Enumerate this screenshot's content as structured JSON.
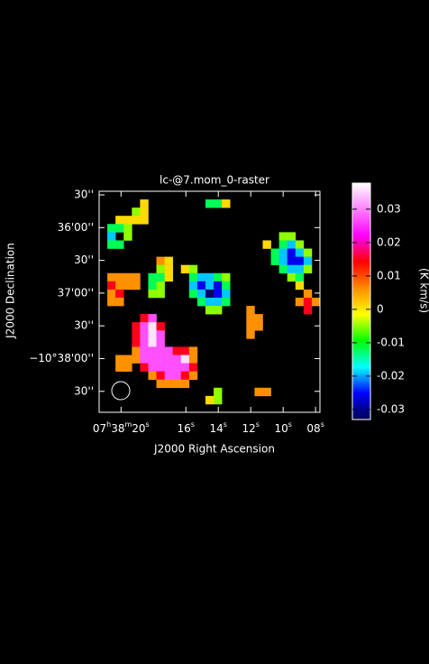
{
  "chart_data": {
    "type": "raster",
    "title": "lc-@7.mom_0-raster",
    "x_label": "J2000 Right Ascension",
    "y_label": "J2000 Declination",
    "colorbar_label": "(K km/s)",
    "xlim": [
      21.35,
      7.73
    ],
    "xticks": [
      {
        "value": 20,
        "label": "07h38m20s"
      },
      {
        "value": 16,
        "label": "16s"
      },
      {
        "value": 14,
        "label": "14s"
      },
      {
        "value": 12,
        "label": "12s"
      },
      {
        "value": 10,
        "label": "10s"
      },
      {
        "value": 8,
        "label": "08s"
      }
    ],
    "ylim": [
      2329.2,
      2126.7
    ],
    "yticks": [
      {
        "value": 2130,
        "label": "30''"
      },
      {
        "value": 2160,
        "label": "36'00''"
      },
      {
        "value": 2190,
        "label": "30''"
      },
      {
        "value": 2220,
        "label": "37'00''"
      },
      {
        "value": 2250,
        "label": "30''"
      },
      {
        "value": 2280,
        "label": "−10°38'00''"
      },
      {
        "value": 2310,
        "label": "30''"
      }
    ],
    "zlim": [
      -0.033,
      0.0378
    ],
    "zticks": [
      0.03,
      0.02,
      0.01,
      0,
      -0.01,
      -0.02,
      -0.03
    ],
    "colormap": [
      "#000050",
      "#0000ff",
      "#00ffff",
      "#00ff00",
      "#ffff00",
      "#ff8c00",
      "#ff0000",
      "#ff00ff",
      "#ff80ff",
      "#ffffff"
    ],
    "z": [
      [
        null,
        null,
        null,
        null,
        null,
        null,
        null,
        null,
        null,
        null,
        null,
        null,
        null,
        null,
        null,
        null,
        null,
        null,
        null,
        null,
        null,
        null,
        null,
        null,
        null,
        null,
        null
      ],
      [
        null,
        null,
        null,
        null,
        null,
        0.001,
        null,
        null,
        null,
        null,
        null,
        null,
        null,
        -0.012,
        -0.012,
        0.001,
        null,
        null,
        null,
        null,
        null,
        null,
        null,
        null,
        null,
        null,
        null
      ],
      [
        null,
        null,
        null,
        null,
        -0.005,
        0.001,
        null,
        null,
        null,
        null,
        null,
        null,
        null,
        null,
        null,
        null,
        null,
        null,
        null,
        null,
        null,
        null,
        null,
        null,
        null,
        null,
        null
      ],
      [
        null,
        null,
        0.001,
        0.001,
        0.001,
        0.001,
        null,
        null,
        null,
        null,
        null,
        null,
        null,
        null,
        null,
        null,
        null,
        null,
        null,
        null,
        null,
        null,
        null,
        null,
        null,
        null,
        null
      ],
      [
        null,
        -0.012,
        -0.012,
        -0.005,
        null,
        null,
        null,
        null,
        null,
        null,
        null,
        null,
        null,
        null,
        null,
        null,
        null,
        null,
        null,
        null,
        null,
        null,
        null,
        null,
        null,
        null,
        null
      ],
      [
        null,
        -0.019,
        null,
        -0.005,
        null,
        null,
        null,
        null,
        null,
        null,
        null,
        null,
        null,
        null,
        null,
        null,
        null,
        null,
        null,
        null,
        null,
        null,
        -0.005,
        -0.005,
        null,
        null,
        null
      ],
      [
        null,
        -0.012,
        -0.012,
        null,
        null,
        null,
        null,
        null,
        null,
        null,
        null,
        null,
        null,
        null,
        null,
        null,
        null,
        null,
        null,
        null,
        0.001,
        null,
        -0.012,
        -0.019,
        -0.005,
        null,
        null
      ],
      [
        null,
        null,
        null,
        null,
        null,
        null,
        null,
        null,
        null,
        null,
        null,
        null,
        null,
        null,
        null,
        null,
        null,
        null,
        null,
        null,
        null,
        -0.012,
        -0.019,
        -0.026,
        -0.019,
        -0.005,
        null
      ],
      [
        null,
        null,
        null,
        null,
        null,
        null,
        null,
        0.006,
        0.001,
        null,
        null,
        null,
        null,
        null,
        null,
        null,
        null,
        null,
        null,
        null,
        null,
        -0.012,
        -0.019,
        -0.026,
        -0.026,
        -0.019,
        null
      ],
      [
        null,
        null,
        null,
        null,
        null,
        null,
        null,
        -0.005,
        0.001,
        null,
        0.001,
        -0.005,
        null,
        null,
        null,
        null,
        null,
        null,
        null,
        null,
        null,
        null,
        -0.012,
        -0.019,
        -0.019,
        -0.005,
        null
      ],
      [
        null,
        0.006,
        0.006,
        0.006,
        0.006,
        null,
        -0.012,
        -0.012,
        0.001,
        null,
        null,
        -0.012,
        -0.019,
        -0.019,
        -0.012,
        -0.005,
        null,
        null,
        null,
        null,
        null,
        null,
        null,
        -0.005,
        -0.012,
        null,
        null
      ],
      [
        null,
        0.015,
        0.006,
        0.006,
        0.006,
        null,
        -0.012,
        -0.005,
        null,
        null,
        null,
        -0.019,
        -0.026,
        -0.019,
        -0.026,
        -0.012,
        null,
        null,
        null,
        null,
        null,
        null,
        null,
        null,
        0.001,
        null,
        null
      ],
      [
        null,
        0.006,
        0.015,
        null,
        null,
        null,
        -0.005,
        -0.005,
        null,
        null,
        null,
        -0.012,
        -0.019,
        -0.032,
        -0.026,
        -0.019,
        null,
        null,
        null,
        null,
        null,
        null,
        null,
        null,
        null,
        0.006,
        null
      ],
      [
        null,
        0.006,
        0.006,
        null,
        null,
        null,
        null,
        null,
        null,
        null,
        null,
        null,
        -0.012,
        -0.019,
        -0.019,
        -0.012,
        null,
        null,
        null,
        null,
        null,
        null,
        null,
        null,
        0.006,
        0.015,
        0.006
      ],
      [
        null,
        null,
        null,
        null,
        null,
        null,
        null,
        null,
        null,
        null,
        null,
        null,
        null,
        -0.005,
        -0.005,
        null,
        null,
        null,
        0.006,
        null,
        null,
        null,
        null,
        null,
        null,
        0.015,
        null
      ],
      [
        null,
        null,
        null,
        null,
        null,
        0.015,
        0.027,
        null,
        null,
        null,
        null,
        null,
        null,
        null,
        null,
        null,
        null,
        null,
        0.006,
        0.006,
        null,
        null,
        null,
        null,
        null,
        null,
        null
      ],
      [
        null,
        null,
        null,
        null,
        0.015,
        0.027,
        0.036,
        0.015,
        null,
        null,
        null,
        null,
        null,
        null,
        null,
        null,
        null,
        null,
        0.006,
        0.006,
        null,
        null,
        null,
        null,
        null,
        null,
        null
      ],
      [
        null,
        null,
        null,
        null,
        0.015,
        0.027,
        0.036,
        0.027,
        null,
        null,
        null,
        null,
        null,
        null,
        null,
        null,
        null,
        null,
        0.006,
        null,
        null,
        null,
        null,
        null,
        null,
        null,
        null
      ],
      [
        null,
        null,
        null,
        null,
        0.015,
        0.027,
        0.036,
        0.027,
        null,
        null,
        null,
        null,
        null,
        null,
        null,
        null,
        null,
        null,
        null,
        null,
        null,
        null,
        null,
        null,
        null,
        null,
        null
      ],
      [
        null,
        null,
        null,
        null,
        0.006,
        0.027,
        0.027,
        0.027,
        0.027,
        0.015,
        0.015,
        0.006,
        null,
        null,
        null,
        null,
        null,
        null,
        null,
        null,
        null,
        null,
        null,
        null,
        null,
        null,
        null
      ],
      [
        null,
        null,
        0.006,
        0.006,
        0.006,
        0.027,
        0.027,
        0.027,
        0.027,
        0.027,
        0.036,
        0.006,
        null,
        null,
        null,
        null,
        null,
        null,
        null,
        null,
        null,
        null,
        null,
        null,
        null,
        null,
        null
      ],
      [
        null,
        null,
        0.006,
        0.006,
        null,
        0.015,
        0.027,
        0.027,
        0.027,
        0.027,
        0.027,
        0.015,
        null,
        null,
        null,
        null,
        null,
        null,
        null,
        null,
        null,
        null,
        null,
        null,
        null,
        null,
        null
      ],
      [
        null,
        null,
        null,
        null,
        null,
        null,
        0.006,
        0.015,
        0.027,
        0.027,
        0.015,
        0.006,
        null,
        null,
        null,
        null,
        null,
        null,
        null,
        null,
        null,
        null,
        null,
        null,
        null,
        null,
        null
      ],
      [
        null,
        null,
        null,
        null,
        null,
        null,
        null,
        0.006,
        0.006,
        0.006,
        0.006,
        null,
        null,
        null,
        null,
        null,
        null,
        null,
        null,
        null,
        null,
        null,
        null,
        null,
        null,
        null,
        null
      ],
      [
        null,
        null,
        null,
        null,
        null,
        null,
        null,
        null,
        null,
        null,
        null,
        null,
        null,
        null,
        -0.005,
        null,
        null,
        null,
        null,
        0.006,
        0.006,
        null,
        null,
        null,
        null,
        null,
        null
      ],
      [
        null,
        null,
        null,
        null,
        null,
        null,
        null,
        null,
        null,
        null,
        null,
        null,
        null,
        0.001,
        -0.005,
        null,
        null,
        null,
        null,
        null,
        null,
        null,
        null,
        null,
        null,
        null,
        null
      ],
      [
        null,
        null,
        null,
        null,
        null,
        null,
        null,
        null,
        null,
        null,
        null,
        null,
        null,
        null,
        null,
        null,
        null,
        null,
        null,
        null,
        null,
        null,
        null,
        null,
        null,
        null,
        null
      ]
    ]
  }
}
